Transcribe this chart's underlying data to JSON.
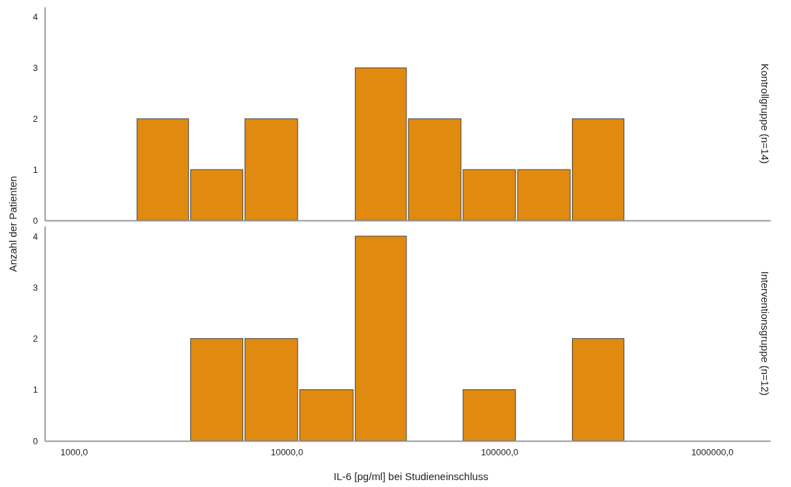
{
  "chart_data": [
    {
      "type": "histogram",
      "title": "Kontrollgruppe (n=14)",
      "ylabel": "Anzahl der Patienten",
      "log": "x",
      "color": "#e08a10",
      "bins": [
        1960,
        3500,
        6300,
        11400,
        20800,
        37000,
        66800,
        120500,
        218000,
        390000
      ],
      "values": [
        2,
        1,
        2,
        0,
        3,
        2,
        1,
        1,
        2
      ],
      "xlim": [
        730,
        1880000
      ],
      "ylim": [
        0,
        4.2
      ],
      "yticks": [
        0,
        1,
        2,
        3,
        4
      ],
      "tick_labels": "y"
    },
    {
      "type": "histogram",
      "title": "Interventionsgruppe (n=12)",
      "xlabel": "IL-6 [pg/ml] bei Studieneinschluss",
      "log": "x",
      "color": "#e08a10",
      "bins": [
        3500,
        6300,
        11400,
        20800,
        37000,
        66800,
        120500,
        218000,
        390000
      ],
      "values": [
        2,
        2,
        1,
        4,
        0,
        1,
        0,
        2
      ],
      "xlim": [
        730,
        1880000
      ],
      "xticks": [
        {
          "value": 1000,
          "label": "1000,0"
        },
        {
          "value": 10000,
          "label": "10000,0"
        },
        {
          "value": 100000,
          "label": "100000,0"
        },
        {
          "value": 1000000,
          "label": "1000000,0"
        }
      ],
      "ylim": [
        0,
        4.2
      ],
      "yticks": [
        0,
        1,
        2,
        3,
        4
      ]
    }
  ]
}
